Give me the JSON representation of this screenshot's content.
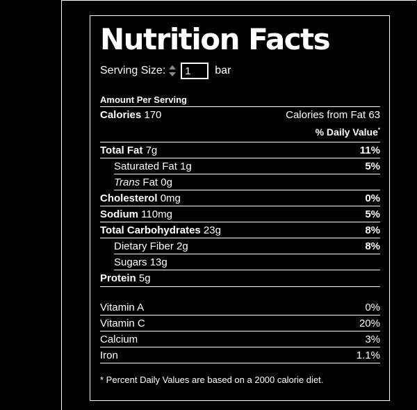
{
  "label": {
    "title": "Nutrition Facts",
    "serving_size_label": "Serving Size:",
    "serving_quantity": "1",
    "serving_unit": "bar",
    "amount_per_serving": "Amount Per Serving",
    "calories_label": "Calories",
    "calories_value": "170",
    "calories_from_fat_label": "Calories from Fat",
    "calories_from_fat_value": "63",
    "daily_value_header": "% Daily Value",
    "daily_value_marker": "*",
    "nutrients": [
      {
        "name": "Total Fat",
        "amount": "7g",
        "percent": "11%"
      },
      {
        "name": "Saturated Fat",
        "amount": "1g",
        "percent": "5%"
      },
      {
        "name_italic": "Trans",
        "name": "Fat",
        "amount": "0g",
        "percent": ""
      },
      {
        "name": "Cholesterol",
        "amount": "0mg",
        "percent": "0%"
      },
      {
        "name": "Sodium",
        "amount": "110mg",
        "percent": "5%"
      },
      {
        "name": "Total Carbohydrates",
        "amount": "23g",
        "percent": "8%"
      },
      {
        "name": "Dietary Fiber",
        "amount": "2g",
        "percent": "8%"
      },
      {
        "name": "Sugars",
        "amount": "13g",
        "percent": ""
      },
      {
        "name": "Protein",
        "amount": "5g",
        "percent": ""
      }
    ],
    "vitamins": [
      {
        "name": "Vitamin A",
        "percent": "0%"
      },
      {
        "name": "Vitamin C",
        "percent": "20%"
      },
      {
        "name": "Calcium",
        "percent": "3%"
      },
      {
        "name": "Iron",
        "percent": "1.1%"
      }
    ],
    "footnote": "* Percent Daily Values are based on a 2000 calorie diet."
  },
  "icons": {
    "serving_stepper": "stepper-icon"
  },
  "colors": {
    "background": "#000000",
    "text": "#ffffff",
    "rule": "#ffffff"
  }
}
